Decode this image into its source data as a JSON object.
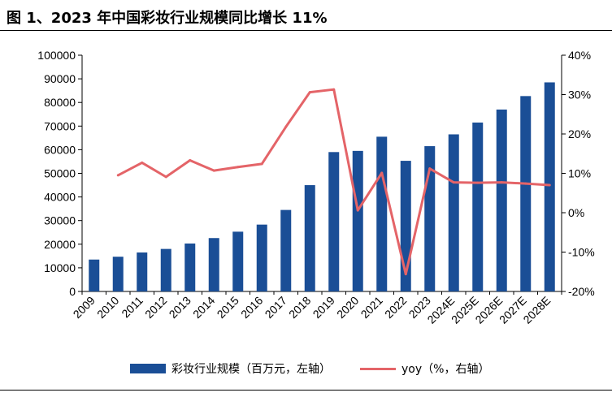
{
  "title": "图 1、2023 年中国彩妆行业规模同比增长 11%",
  "colors": {
    "bar": "#1a4e96",
    "line": "#e46468",
    "axis": "#000000"
  },
  "legend": {
    "bar_label": "彩妆行业规模（百万元，左轴）",
    "line_label": "yoy（%，右轴）",
    "placement": "bottom"
  },
  "chart_data": {
    "type": "bar",
    "categories": [
      "2009",
      "2010",
      "2011",
      "2012",
      "2013",
      "2014",
      "2015",
      "2016",
      "2017",
      "2018",
      "2019",
      "2020",
      "2021",
      "2022",
      "2023",
      "2024E",
      "2025E",
      "2026E",
      "2027E",
      "2028E"
    ],
    "series": [
      {
        "name": "彩妆行业规模（百万元，左轴）",
        "type": "bar",
        "axis": "left",
        "values": [
          13500,
          14700,
          16500,
          18000,
          20300,
          22600,
          25300,
          28300,
          34500,
          45000,
          59000,
          59500,
          65500,
          55300,
          61500,
          66500,
          71500,
          77000,
          82700,
          88500
        ]
      },
      {
        "name": "yoy（%，右轴）",
        "type": "line",
        "axis": "right",
        "values": [
          null,
          9.5,
          12.7,
          9.1,
          13.3,
          10.7,
          11.6,
          12.4,
          21.8,
          30.6,
          31.3,
          0.6,
          10.1,
          -15.6,
          11.2,
          7.7,
          7.6,
          7.7,
          7.4,
          7.0
        ]
      }
    ],
    "yleft": {
      "ylim": [
        0,
        100000
      ],
      "ticks": [
        "0",
        "10000",
        "20000",
        "30000",
        "40000",
        "50000",
        "60000",
        "70000",
        "80000",
        "90000",
        "100000"
      ]
    },
    "yright": {
      "ylim": [
        -20,
        40
      ],
      "ticks": [
        "-20%",
        "-10%",
        "0%",
        "10%",
        "20%",
        "30%",
        "40%"
      ]
    },
    "grid": false
  }
}
